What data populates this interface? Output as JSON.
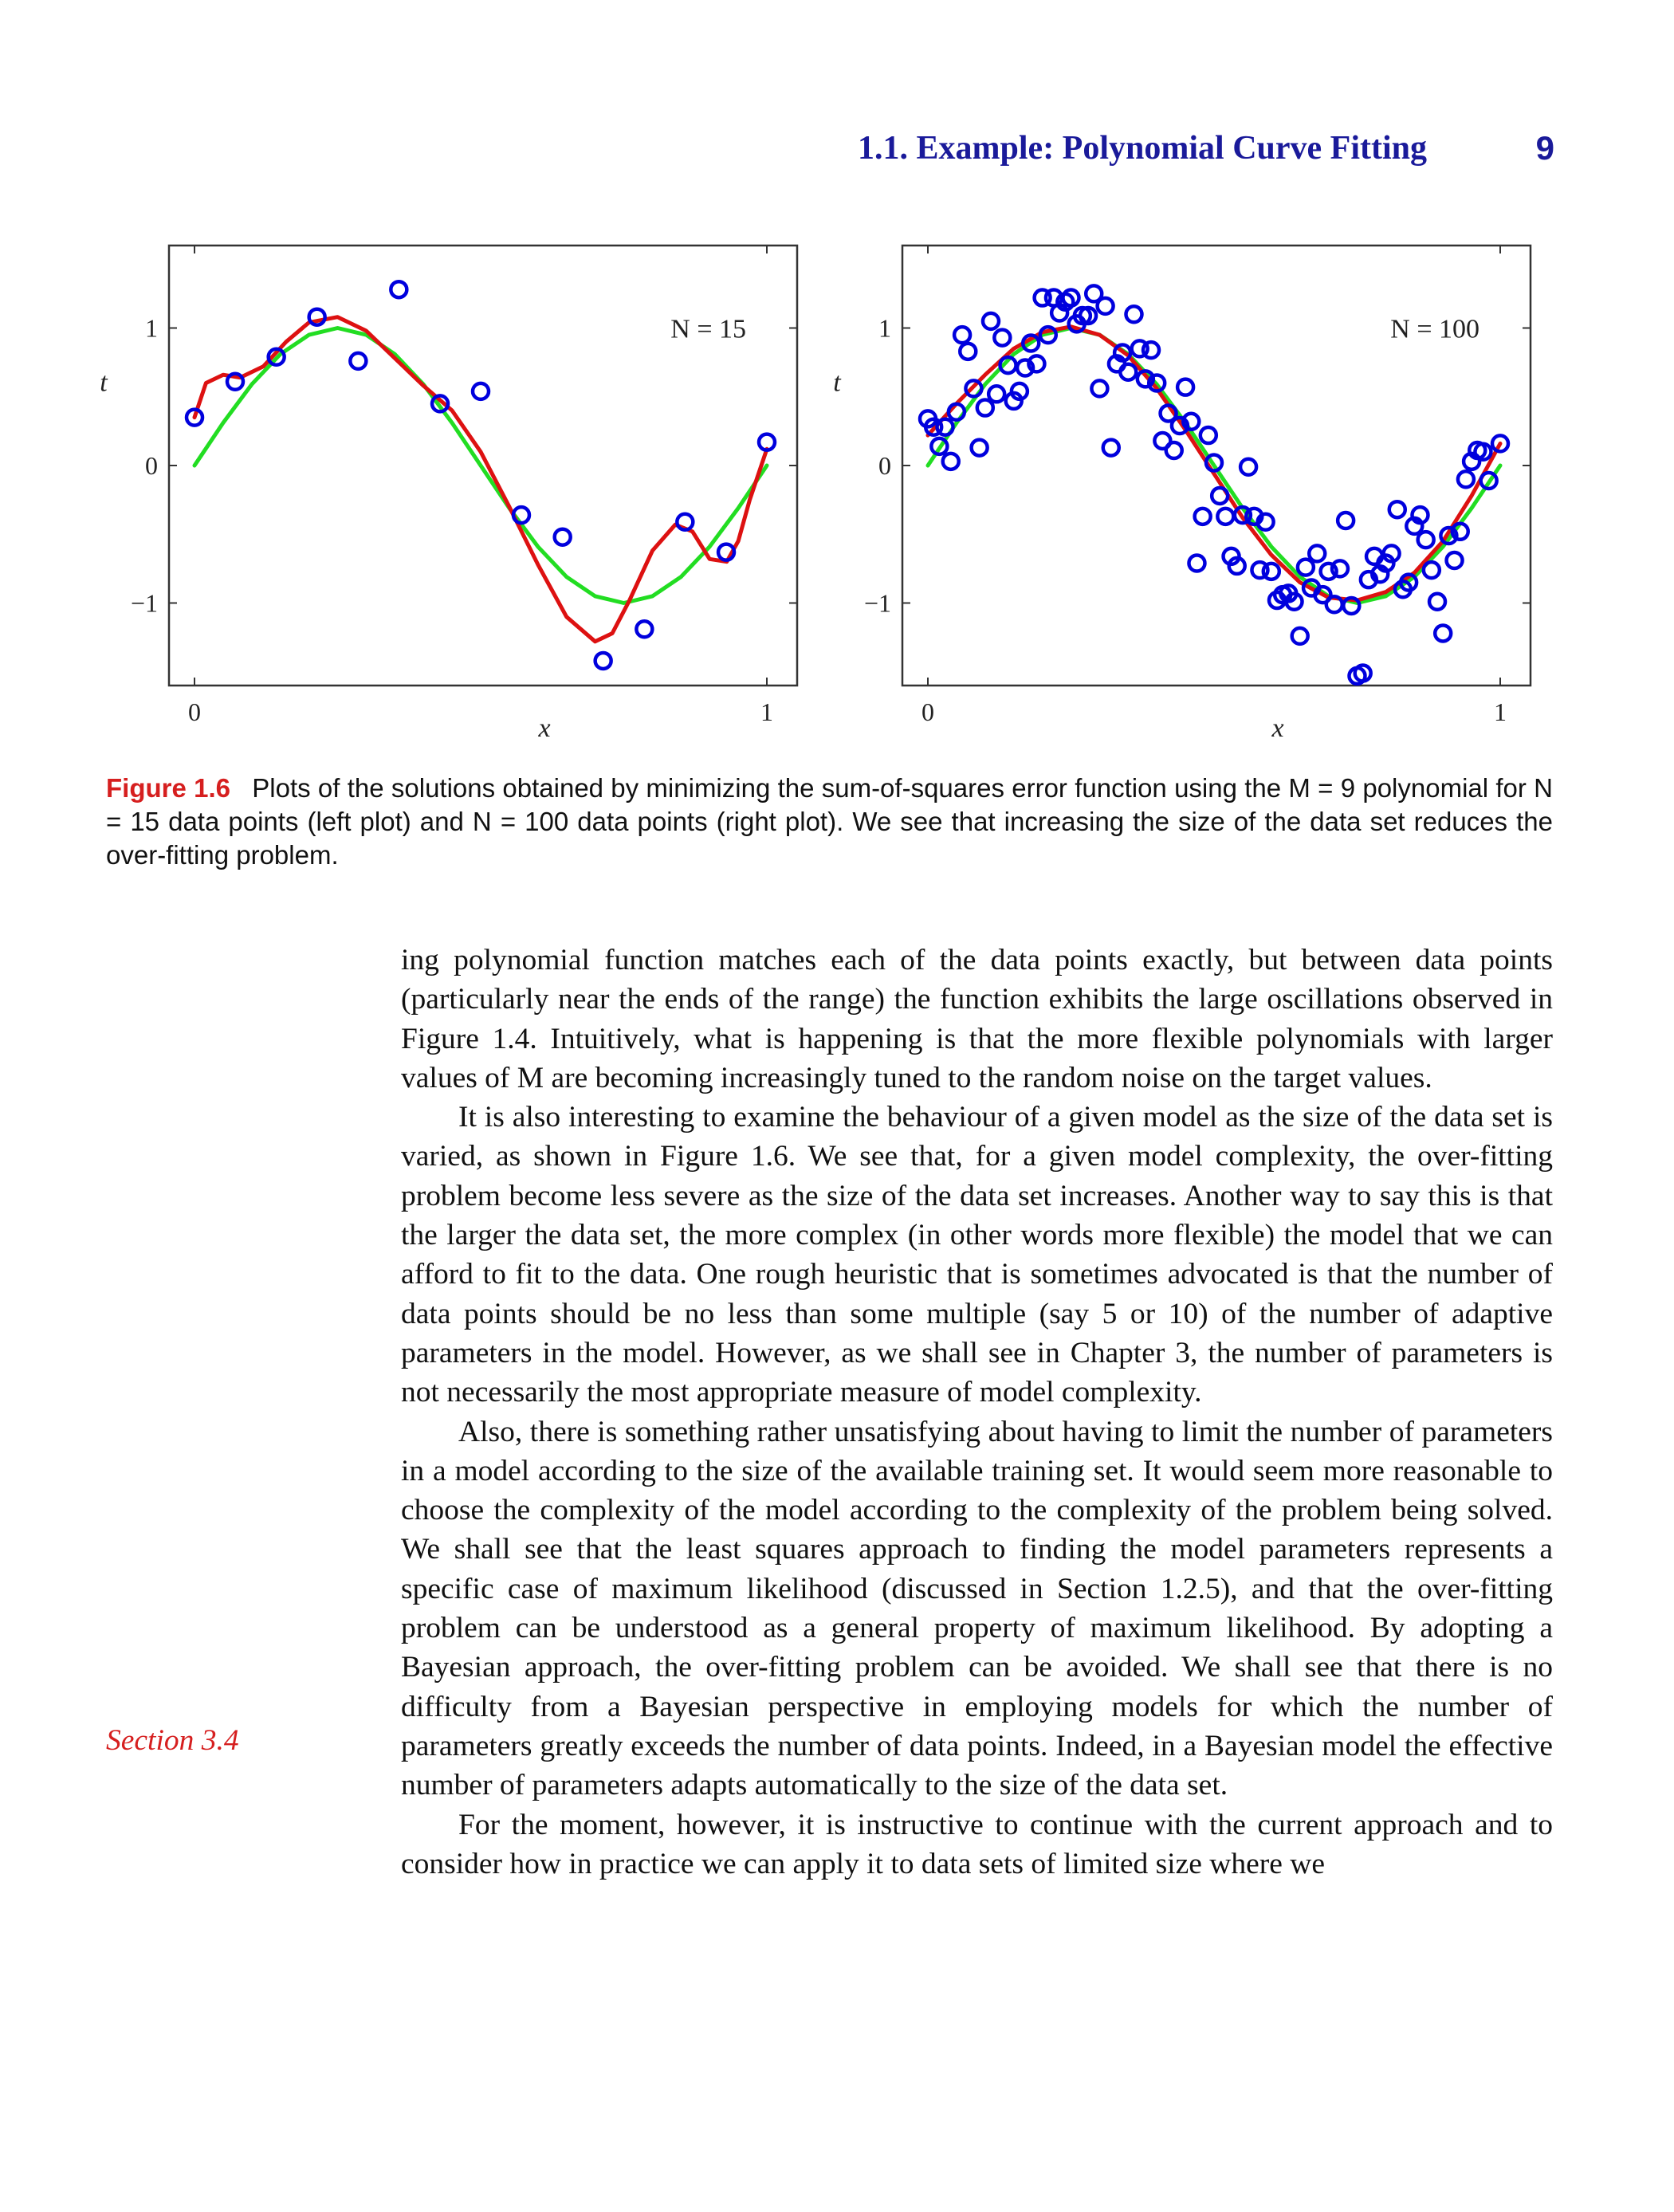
{
  "header": {
    "title": "1.1. Example: Polynomial Curve Fitting",
    "page_number": "9"
  },
  "chart_data": [
    {
      "type": "scatter",
      "annotation": "N = 15",
      "xlabel": "x",
      "ylabel": "t",
      "xlim": [
        0,
        1
      ],
      "ylim": [
        -1.6,
        1.6
      ],
      "xticks": [
        "0",
        "1"
      ],
      "yticks": [
        "-1",
        "0",
        "1"
      ],
      "grid": false,
      "series": [
        {
          "kind": "points",
          "color": "#0000dd",
          "x": [
            0.0,
            0.071,
            0.143,
            0.214,
            0.286,
            0.357,
            0.429,
            0.5,
            0.571,
            0.643,
            0.714,
            0.786,
            0.857,
            0.929,
            1.0
          ],
          "y": [
            0.35,
            0.61,
            0.79,
            1.08,
            0.76,
            1.28,
            0.45,
            0.54,
            -0.36,
            -0.52,
            -1.42,
            -1.19,
            -0.41,
            -0.63,
            0.17
          ]
        },
        {
          "kind": "curve",
          "color": "#22dd22",
          "x": [
            0,
            0.05,
            0.1,
            0.15,
            0.2,
            0.25,
            0.3,
            0.35,
            0.4,
            0.45,
            0.5,
            0.55,
            0.6,
            0.65,
            0.7,
            0.75,
            0.8,
            0.85,
            0.9,
            0.95,
            1.0
          ],
          "y": [
            0,
            0.31,
            0.59,
            0.81,
            0.95,
            1.0,
            0.95,
            0.81,
            0.59,
            0.31,
            0,
            -0.31,
            -0.59,
            -0.81,
            -0.95,
            -1.0,
            -0.95,
            -0.81,
            -0.59,
            -0.31,
            0
          ]
        },
        {
          "kind": "curve",
          "color": "#dd1111",
          "x": [
            0,
            0.02,
            0.05,
            0.08,
            0.12,
            0.16,
            0.2,
            0.25,
            0.3,
            0.35,
            0.4,
            0.45,
            0.5,
            0.55,
            0.6,
            0.65,
            0.7,
            0.73,
            0.76,
            0.8,
            0.84,
            0.87,
            0.9,
            0.93,
            0.95,
            0.97,
            1.0
          ],
          "y": [
            0.35,
            0.6,
            0.66,
            0.64,
            0.72,
            0.9,
            1.04,
            1.08,
            0.98,
            0.78,
            0.58,
            0.4,
            0.1,
            -0.3,
            -0.72,
            -1.1,
            -1.28,
            -1.22,
            -0.98,
            -0.62,
            -0.43,
            -0.48,
            -0.68,
            -0.7,
            -0.55,
            -0.25,
            0.12
          ]
        }
      ]
    },
    {
      "type": "scatter",
      "annotation": "N = 100",
      "xlabel": "x",
      "ylabel": "t",
      "xlim": [
        0,
        1
      ],
      "ylim": [
        -1.6,
        1.6
      ],
      "xticks": [
        "0",
        "1"
      ],
      "yticks": [
        "-1",
        "0",
        "1"
      ],
      "grid": false,
      "series": [
        {
          "kind": "points",
          "color": "#0000dd",
          "x": [
            0.0,
            0.01,
            0.02,
            0.03,
            0.04,
            0.05,
            0.06,
            0.07,
            0.08,
            0.09,
            0.1,
            0.11,
            0.12,
            0.13,
            0.14,
            0.15,
            0.16,
            0.17,
            0.18,
            0.19,
            0.2,
            0.21,
            0.22,
            0.23,
            0.24,
            0.25,
            0.26,
            0.27,
            0.28,
            0.29,
            0.3,
            0.31,
            0.32,
            0.33,
            0.34,
            0.35,
            0.36,
            0.37,
            0.38,
            0.39,
            0.4,
            0.41,
            0.42,
            0.43,
            0.44,
            0.45,
            0.46,
            0.47,
            0.48,
            0.49,
            0.5,
            0.51,
            0.52,
            0.53,
            0.54,
            0.55,
            0.56,
            0.57,
            0.58,
            0.59,
            0.6,
            0.61,
            0.62,
            0.63,
            0.64,
            0.65,
            0.66,
            0.67,
            0.68,
            0.69,
            0.7,
            0.71,
            0.72,
            0.73,
            0.74,
            0.75,
            0.76,
            0.77,
            0.78,
            0.79,
            0.8,
            0.81,
            0.82,
            0.83,
            0.84,
            0.85,
            0.86,
            0.87,
            0.88,
            0.89,
            0.9,
            0.91,
            0.92,
            0.93,
            0.94,
            0.95,
            0.96,
            0.97,
            0.98,
            1.0
          ],
          "y": [
            0.34,
            0.28,
            0.14,
            0.28,
            0.03,
            0.39,
            0.95,
            0.83,
            0.56,
            0.13,
            0.42,
            1.05,
            0.52,
            0.93,
            0.73,
            0.47,
            0.54,
            0.71,
            0.89,
            0.74,
            1.22,
            0.95,
            1.22,
            1.11,
            1.19,
            1.22,
            1.03,
            1.09,
            1.09,
            1.25,
            0.56,
            1.16,
            0.13,
            0.74,
            0.82,
            0.68,
            1.1,
            0.85,
            0.63,
            0.84,
            0.6,
            0.18,
            0.38,
            0.11,
            0.29,
            0.57,
            0.32,
            -0.71,
            -0.37,
            0.22,
            0.02,
            -0.22,
            -0.37,
            -0.66,
            -0.73,
            -0.36,
            -0.01,
            -0.37,
            -0.76,
            -0.41,
            -0.77,
            -0.98,
            -0.94,
            -0.93,
            -0.99,
            -1.24,
            -0.74,
            -0.89,
            -0.64,
            -0.94,
            -0.77,
            -1.01,
            -0.75,
            -0.4,
            -1.02,
            -1.53,
            -1.51,
            -0.83,
            -0.66,
            -0.79,
            -0.71,
            -0.64,
            -0.32,
            -0.9,
            -0.85,
            -0.44,
            -0.36,
            -0.54,
            -0.76,
            -0.99,
            -1.22,
            -0.51,
            -0.69,
            -0.48,
            -0.1,
            0.03,
            0.11,
            0.1,
            -0.11,
            0.16
          ]
        },
        {
          "kind": "curve",
          "color": "#22dd22",
          "x": [
            0,
            0.05,
            0.1,
            0.15,
            0.2,
            0.25,
            0.3,
            0.35,
            0.4,
            0.45,
            0.5,
            0.55,
            0.6,
            0.65,
            0.7,
            0.75,
            0.8,
            0.85,
            0.9,
            0.95,
            1.0
          ],
          "y": [
            0,
            0.31,
            0.59,
            0.81,
            0.95,
            1.0,
            0.95,
            0.81,
            0.59,
            0.31,
            0,
            -0.31,
            -0.59,
            -0.81,
            -0.95,
            -1.0,
            -0.95,
            -0.81,
            -0.59,
            -0.31,
            0
          ]
        },
        {
          "kind": "curve",
          "color": "#dd1111",
          "x": [
            0,
            0.05,
            0.1,
            0.15,
            0.2,
            0.25,
            0.3,
            0.35,
            0.4,
            0.45,
            0.5,
            0.55,
            0.6,
            0.65,
            0.7,
            0.75,
            0.8,
            0.85,
            0.9,
            0.95,
            1.0
          ],
          "y": [
            0.22,
            0.45,
            0.66,
            0.85,
            0.97,
            1.01,
            0.95,
            0.8,
            0.56,
            0.26,
            -0.06,
            -0.38,
            -0.65,
            -0.85,
            -0.96,
            -0.98,
            -0.92,
            -0.78,
            -0.55,
            -0.22,
            0.16
          ]
        }
      ]
    }
  ],
  "caption": {
    "label": "Figure 1.6",
    "text": "Plots of the solutions obtained by minimizing the sum-of-squares error function using the M = 9 polynomial for N = 15 data points (left plot) and N = 100 data points (right plot). We see that increasing the size of the data set reduces the over-fitting problem."
  },
  "margin_note": "Section 3.4",
  "paragraphs": [
    "ing polynomial function matches each of the data points exactly, but between data points (particularly near the ends of the range) the function exhibits the large oscillations observed in Figure 1.4. Intuitively, what is happening is that the more flexible polynomials with larger values of M are becoming increasingly tuned to the random noise on the target values.",
    "It is also interesting to examine the behaviour of a given model as the size of the data set is varied, as shown in Figure 1.6. We see that, for a given model complexity, the over-fitting problem become less severe as the size of the data set increases. Another way to say this is that the larger the data set, the more complex (in other words more flexible) the model that we can afford to fit to the data. One rough heuristic that is sometimes advocated is that the number of data points should be no less than some multiple (say 5 or 10) of the number of adaptive parameters in the model. However, as we shall see in Chapter 3, the number of parameters is not necessarily the most appropriate measure of model complexity.",
    "Also, there is something rather unsatisfying about having to limit the number of parameters in a model according to the size of the available training set. It would seem more reasonable to choose the complexity of the model according to the complexity of the problem being solved. We shall see that the least squares approach to finding the model parameters represents a specific case of maximum likelihood (discussed in Section 1.2.5), and that the over-fitting problem can be understood as a general property of maximum likelihood. By adopting a Bayesian approach, the over-fitting problem can be avoided. We shall see that there is no difficulty from a Bayesian perspective in employing models for which the number of parameters greatly exceeds the number of data points. Indeed, in a Bayesian model the effective number of parameters adapts automatically to the size of the data set.",
    "For the moment, however, it is instructive to continue with the current approach and to consider how in practice we can apply it to data sets of limited size where we"
  ]
}
